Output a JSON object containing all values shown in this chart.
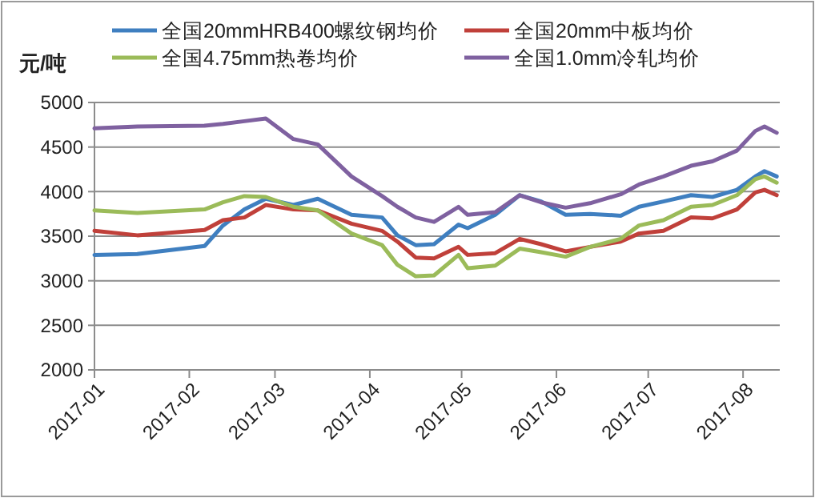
{
  "chart_data": {
    "type": "line",
    "ylabel": "元/吨",
    "x": [
      "2017-01-01",
      "2017-01-15",
      "2017-02-06",
      "2017-02-12",
      "2017-02-19",
      "2017-02-26",
      "2017-03-07",
      "2017-03-15",
      "2017-03-26",
      "2017-04-05",
      "2017-04-10",
      "2017-04-16",
      "2017-04-22",
      "2017-04-30",
      "2017-05-03",
      "2017-05-12",
      "2017-05-20",
      "2017-05-27",
      "2017-06-04",
      "2017-06-12",
      "2017-06-22",
      "2017-06-28",
      "2017-07-06",
      "2017-07-15",
      "2017-07-22",
      "2017-07-30",
      "2017-08-05",
      "2017-08-08",
      "2017-08-12"
    ],
    "series": [
      {
        "name": "全国20mmHRB400螺纹钢均价",
        "color": "#3f7fc0",
        "values": [
          3290,
          3300,
          3390,
          3620,
          3800,
          3920,
          3850,
          3920,
          3740,
          3710,
          3510,
          3400,
          3410,
          3630,
          3590,
          3740,
          3960,
          3890,
          3740,
          3750,
          3730,
          3830,
          3890,
          3960,
          3940,
          4020,
          4170,
          4230,
          4170
        ]
      },
      {
        "name": "全国20mm中板均价",
        "color": "#c0403a",
        "values": [
          3560,
          3510,
          3570,
          3680,
          3710,
          3850,
          3800,
          3790,
          3640,
          3560,
          3440,
          3260,
          3250,
          3380,
          3290,
          3310,
          3470,
          3410,
          3330,
          3380,
          3440,
          3530,
          3560,
          3710,
          3700,
          3800,
          3990,
          4020,
          3960
        ]
      },
      {
        "name": "全国4.75mm热卷均价",
        "color": "#9bbb59",
        "values": [
          3790,
          3760,
          3800,
          3880,
          3950,
          3940,
          3830,
          3790,
          3530,
          3400,
          3180,
          3050,
          3060,
          3290,
          3140,
          3170,
          3360,
          3320,
          3270,
          3380,
          3470,
          3620,
          3680,
          3830,
          3850,
          3960,
          4140,
          4170,
          4100
        ]
      },
      {
        "name": "全国1.0mm冷轧均价",
        "color": "#7f61a0",
        "values": [
          4710,
          4730,
          4740,
          4760,
          4790,
          4820,
          4590,
          4530,
          4170,
          3950,
          3830,
          3710,
          3660,
          3830,
          3740,
          3770,
          3960,
          3880,
          3820,
          3870,
          3970,
          4080,
          4170,
          4290,
          4340,
          4460,
          4680,
          4730,
          4660
        ]
      }
    ],
    "xlim": [
      "2017-01-01",
      "2017-08-13"
    ],
    "xticks": [
      {
        "value": "2017-01-01",
        "label": "2017-01"
      },
      {
        "value": "2017-02-01",
        "label": "2017-02"
      },
      {
        "value": "2017-03-01",
        "label": "2017-03"
      },
      {
        "value": "2017-04-01",
        "label": "2017-04"
      },
      {
        "value": "2017-05-01",
        "label": "2017-05"
      },
      {
        "value": "2017-06-01",
        "label": "2017-06"
      },
      {
        "value": "2017-07-01",
        "label": "2017-07"
      },
      {
        "value": "2017-08-01",
        "label": "2017-08"
      }
    ],
    "ylim": [
      2000,
      5000
    ],
    "yticks": [
      2000,
      2500,
      3000,
      3500,
      4000,
      4500,
      5000
    ],
    "grid": "y",
    "legend": "top",
    "marker": "none",
    "line_style": "solid"
  }
}
